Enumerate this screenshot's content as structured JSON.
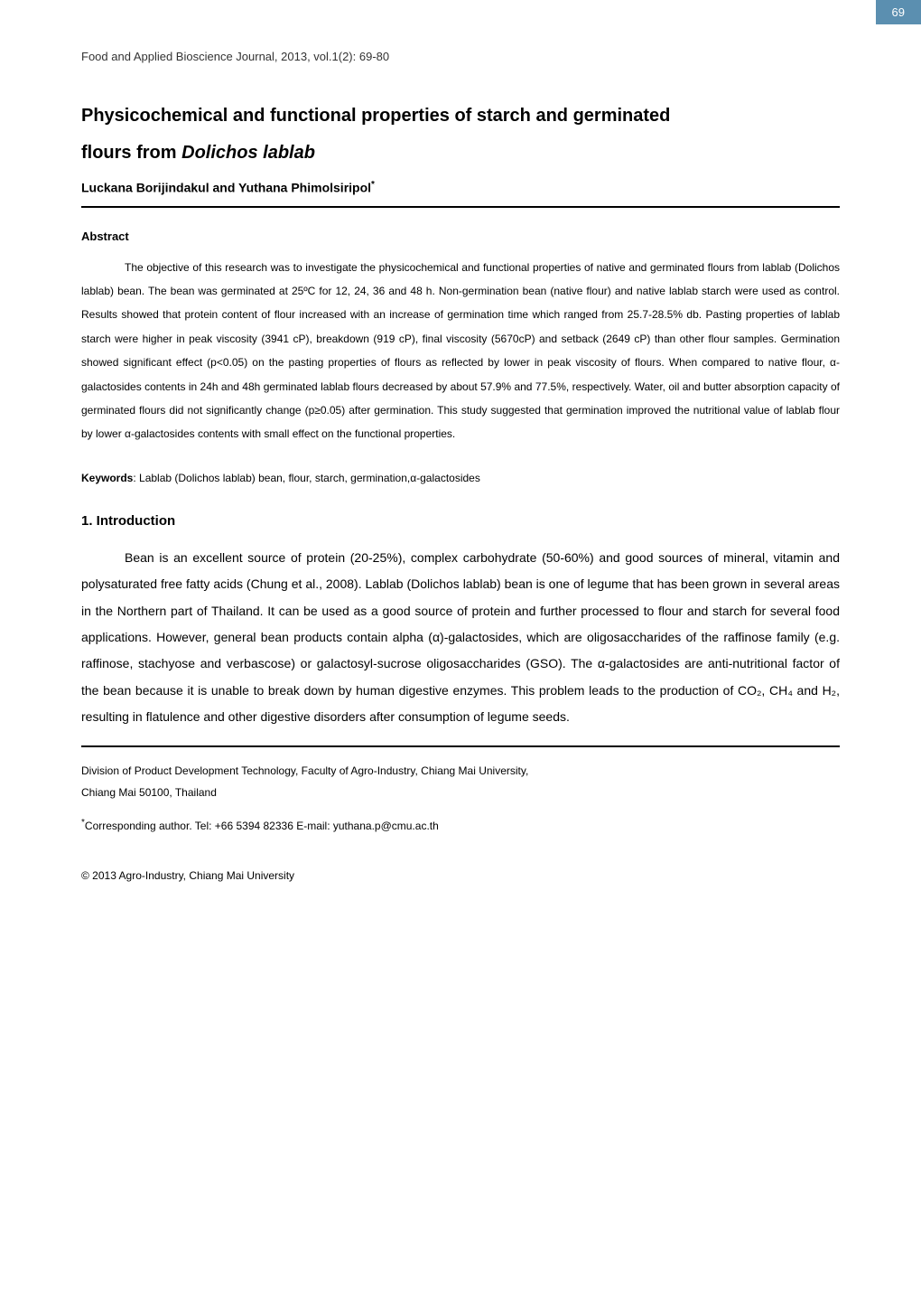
{
  "page_number": "69",
  "journal_header": "Food and Applied Bioscience Journal, 2013, vol.1(2): 69-80",
  "title_line1": "Physicochemical and functional properties of starch and germinated",
  "title_line2_prefix": "flours from ",
  "title_line2_italic": "Dolichos lablab",
  "authors": "Luckana Borijindakul and Yuthana Phimolsiripol",
  "author_sup": "*",
  "abstract_heading": "Abstract",
  "abstract_body": "The objective of this research was to investigate the physicochemical and functional properties of native and germinated flours from lablab (Dolichos lablab) bean. The bean was germinated at 25ºC for 12, 24, 36 and 48 h. Non-germination bean (native flour) and native lablab starch were used as control. Results showed that protein content of flour increased with an increase of germination time which ranged from 25.7-28.5% db. Pasting properties of lablab starch were higher in peak viscosity (3941 cP), breakdown (919 cP), final viscosity (5670cP) and setback (2649 cP) than other flour samples. Germination showed significant effect (p<0.05) on the pasting properties of flours as reflected by lower in peak viscosity of flours. When compared to native flour, α-galactosides contents in 24h and 48h germinated lablab flours decreased by about 57.9% and 77.5%, respectively. Water, oil and butter absorption capacity of germinated flours did not significantly change (p≥0.05) after germination. This study suggested that germination improved the nutritional value of lablab flour by lower α-galactosides contents with small effect on the functional properties.",
  "keywords_label": "Keywords",
  "keywords_value": ":  Lablab (Dolichos lablab) bean, flour, starch, germination,α-galactosides",
  "intro_heading": "1.  Introduction",
  "intro_body": "Bean is an excellent source of protein (20-25%), complex carbohydrate (50-60%) and good sources of mineral, vitamin and polysaturated free fatty acids (Chung et al., 2008). Lablab (Dolichos lablab) bean is one of legume that has been grown in several areas in the Northern part of Thailand. It can be used as a good source of protein and further processed to flour and starch for several food applications. However, general bean products contain alpha (α)-galactosides, which are oligosaccharides of the raffinose family (e.g. raffinose, stachyose and verbascose) or galactosyl-sucrose oligosaccharides (GSO). The α-galactosides are anti-nutritional factor of the bean because it is unable to break down by human digestive enzymes. This problem leads to the production of CO₂, CH₄ and H₂, resulting in flatulence and other digestive disorders after consumption of legume seeds.",
  "affiliation_line1": "Division of Product Development Technology, Faculty of Agro-Industry, Chiang Mai University,",
  "affiliation_line2": "Chiang Mai 50100, Thailand",
  "corresponding_sup": "*",
  "corresponding_text": "Corresponding author. Tel: +66 5394 82336 E-mail: yuthana.p@cmu.ac.th",
  "copyright": "© 2013 Agro-Industry, Chiang Mai University",
  "colors": {
    "tab_bg": "#5b8fb0",
    "tab_text": "#ffffff",
    "body_text": "#000000",
    "header_text": "#333333",
    "background": "#ffffff",
    "divider": "#000000"
  },
  "typography": {
    "title_fontsize": 20,
    "author_fontsize": 14,
    "abstract_fontsize": 12,
    "intro_fontsize": 14,
    "heading_fontsize": 13,
    "footer_fontsize": 12
  }
}
